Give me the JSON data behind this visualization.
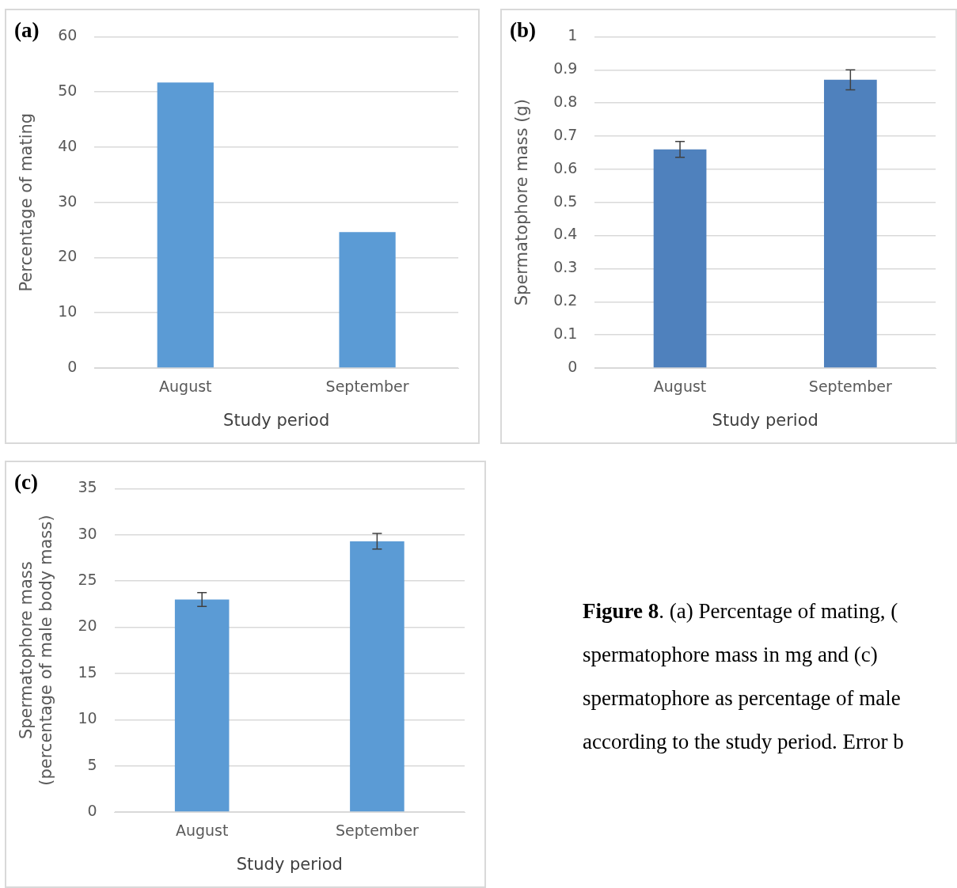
{
  "chart_data": [
    {
      "type": "bar",
      "title": "(a)",
      "xlabel": "Study period",
      "ylabel": "Percentage of mating",
      "categories": [
        "August",
        "September"
      ],
      "values": [
        51.7,
        24.6
      ],
      "color": "#5b9bd5",
      "ylim": [
        0,
        60
      ],
      "yticks": [
        0,
        10,
        20,
        30,
        40,
        50,
        60
      ],
      "grid": "y"
    },
    {
      "type": "bar",
      "title": "(b)",
      "xlabel": "Study period",
      "ylabel": "Spermatophore mass (g)",
      "categories": [
        "August",
        "September"
      ],
      "values": [
        0.66,
        0.87
      ],
      "errors": [
        0.024,
        0.03
      ],
      "color": "#4f81bd",
      "ylim": [
        0,
        1
      ],
      "yticks": [
        0,
        0.1,
        0.2,
        0.3,
        0.4,
        0.5,
        0.6,
        0.7,
        0.8,
        0.9,
        1
      ],
      "grid": "y"
    },
    {
      "type": "bar",
      "title": "(c)",
      "xlabel": "Study period",
      "ylabel": "Spermatophore mass\n(percentage of male body mass)",
      "categories": [
        "August",
        "September"
      ],
      "values": [
        23.0,
        29.3
      ],
      "errors": [
        0.75,
        0.85
      ],
      "color": "#5b9bd5",
      "ylim": [
        0,
        35
      ],
      "yticks": [
        0,
        5,
        10,
        15,
        20,
        25,
        30,
        35
      ],
      "grid": "y"
    },
    {
      "type": "other",
      "title": "Figure 8",
      "annotations": [
        ". (a) Percentage of mating, (",
        "spermatophore mass in mg and (c)",
        "spermatophore as percentage of male",
        "according to the study period. Error b"
      ]
    }
  ]
}
